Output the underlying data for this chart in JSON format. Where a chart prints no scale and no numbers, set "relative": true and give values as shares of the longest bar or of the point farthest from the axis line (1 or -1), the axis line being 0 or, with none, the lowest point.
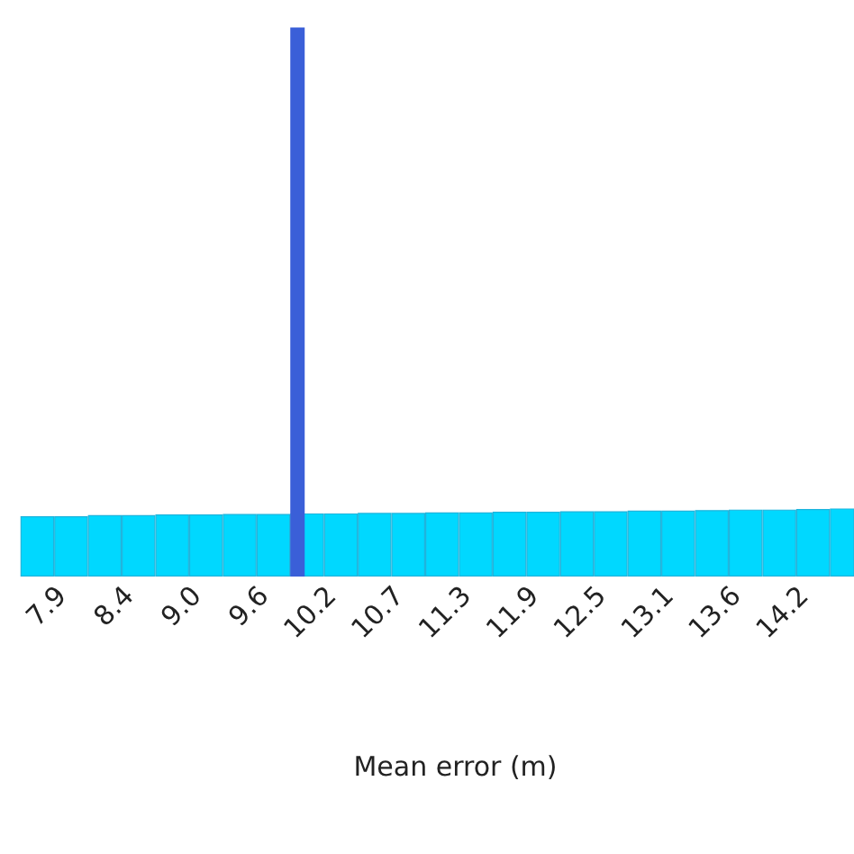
{
  "chart_data": {
    "type": "bar",
    "xlabel": "Mean error (m)",
    "relative": true,
    "categories": [
      null,
      "7.9",
      null,
      "8.4",
      null,
      "9.0",
      null,
      "9.6",
      null,
      "10.2",
      null,
      "10.7",
      null,
      "11.3",
      null,
      "11.9",
      null,
      "12.5",
      null,
      "13.1",
      null,
      "13.6",
      null,
      "14.2",
      null
    ],
    "series": [
      {
        "color": "#00d8ff",
        "values": [
          0.11,
          0.11,
          0.112,
          0.112,
          0.113,
          0.113,
          0.114,
          0.114,
          0.115,
          0.115,
          0.116,
          0.116,
          0.117,
          0.117,
          0.118,
          0.118,
          0.119,
          0.119,
          0.12,
          0.12,
          0.121,
          0.122,
          0.122,
          0.123,
          0.124
        ]
      },
      {
        "color": "#3a5fd8",
        "values": [
          null,
          null,
          null,
          null,
          null,
          null,
          null,
          null,
          1,
          null,
          null,
          null,
          null,
          null,
          null,
          null,
          null,
          null,
          null,
          null,
          null,
          null,
          null,
          null,
          null
        ]
      }
    ]
  }
}
